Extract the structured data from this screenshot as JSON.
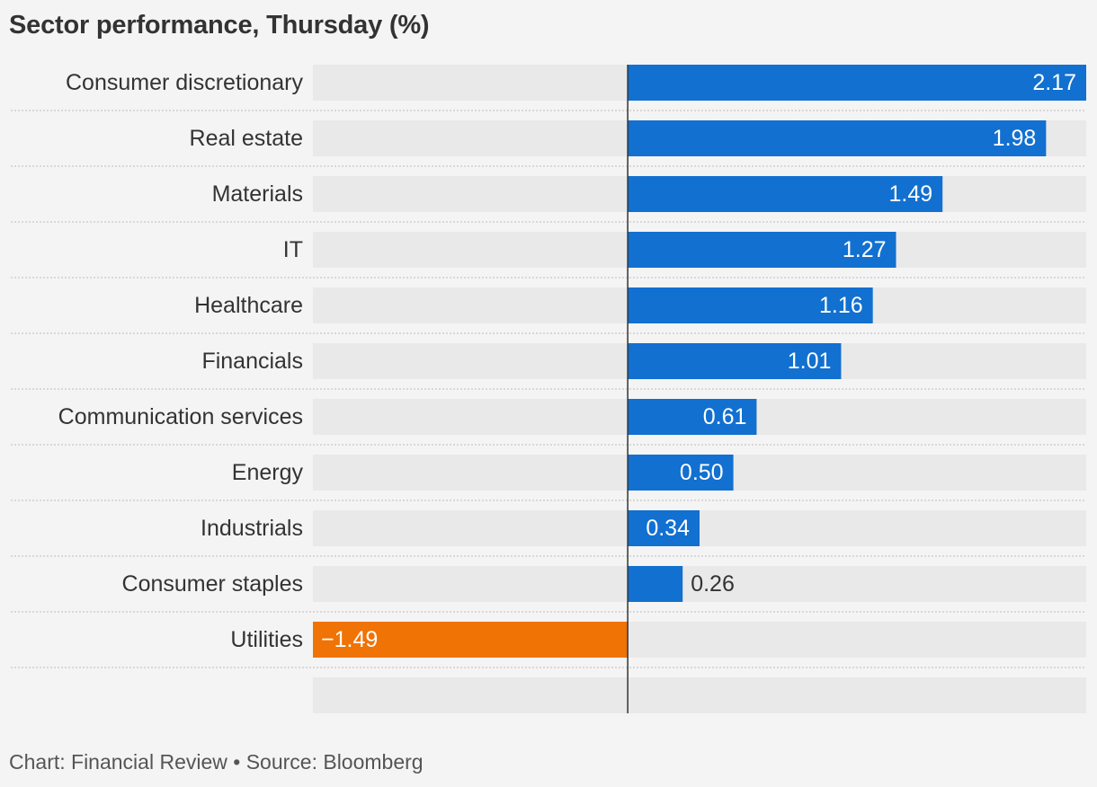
{
  "title": "Sector performance, Thursday (%)",
  "credit": "Chart: Financial Review • Source: Bloomberg",
  "colors": {
    "positive": "#1270d0",
    "negative": "#f07305",
    "track": "#e9e9e9",
    "zero_line": "#333333",
    "separator": "#bdbdbd",
    "label_text": "#333333",
    "value_inside": "#ffffff",
    "value_outside": "#333333"
  },
  "chart_data": {
    "type": "bar",
    "orientation": "horizontal",
    "title": "Sector performance, Thursday (%)",
    "categories": [
      "Consumer discretionary",
      "Real estate",
      "Materials",
      "IT",
      "Healthcare",
      "Financials",
      "Communication services",
      "Energy",
      "Industrials",
      "Consumer staples",
      "Utilities"
    ],
    "values": [
      2.17,
      1.98,
      1.49,
      1.27,
      1.16,
      1.01,
      0.61,
      0.5,
      0.34,
      0.26,
      -1.49
    ],
    "value_labels": [
      "2.17",
      "1.98",
      "1.49",
      "1.27",
      "1.16",
      "1.01",
      "0.61",
      "0.50",
      "0.34",
      "0.26",
      "−1.49"
    ],
    "xlim": [
      -1.49,
      2.17
    ],
    "grid": false,
    "legend": "none"
  }
}
